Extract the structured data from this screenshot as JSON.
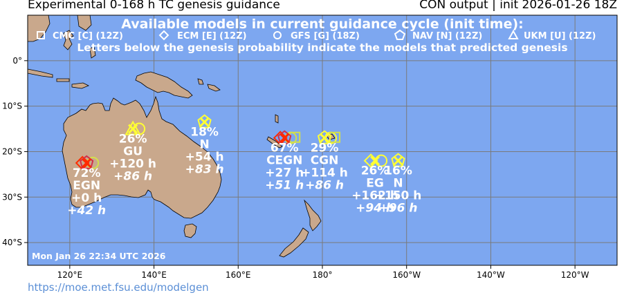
{
  "header": {
    "title_left": "Experimental 0-168 h TC genesis guidance",
    "title_right": "CON output | init 2026-01-26 18Z"
  },
  "footer": {
    "url": "https://moe.met.fsu.edu/modelgen"
  },
  "map": {
    "timestamp": "Mon Jan 26 22:34 UTC 2026",
    "legend_title": "Available models in current guidance cycle (init time):",
    "legend_note": "Letters below the genesis probability indicate the models that predicted genesis",
    "models": [
      {
        "symbol": "square",
        "label": "CMC [C] (12Z)"
      },
      {
        "symbol": "diamond",
        "label": "ECM [E] (12Z)"
      },
      {
        "symbol": "circle",
        "label": "GFS [G] (18Z)"
      },
      {
        "symbol": "pentagon",
        "label": "NAV [N] (12Z)"
      },
      {
        "symbol": "triangle",
        "label": "UKM [U] (12Z)"
      }
    ],
    "x_ticks": [
      "120°E",
      "140°E",
      "160°E",
      "180°",
      "160°W",
      "140°W",
      "120°W"
    ],
    "y_ticks": [
      "0°",
      "10°S",
      "20°S",
      "30°S",
      "40°S"
    ],
    "colors": {
      "ocean": "#7da7f0",
      "land": "#c9a88c",
      "grid": "#7a7a7a",
      "high": "#ff2a00",
      "mid": "#d4e04a",
      "low": "#ffff33"
    },
    "systems": [
      {
        "prob": "72%",
        "models": "EGN",
        "time1": "+0 h",
        "time2": "+42 h",
        "color": "#ff2a00",
        "lon": 124,
        "lat": -22.5
      },
      {
        "prob": "26%",
        "models": "GU",
        "time1": "+120 h",
        "time2": "+86 h",
        "color": "#ffff33",
        "lon": 135,
        "lat": -15
      },
      {
        "prob": "18%",
        "models": "N",
        "time1": "+54 h",
        "time2": "+83 h",
        "color": "#ffff33",
        "lon": 152,
        "lat": -13.5
      },
      {
        "prob": "67%",
        "models": "CEGN",
        "time1": "+27 h",
        "time2": "+51 h",
        "color": "#ff2a00",
        "lon": 171,
        "lat": -17
      },
      {
        "prob": "29%",
        "models": "CGN",
        "time1": "+114 h",
        "time2": "+86 h",
        "color": "#ffff33",
        "lon": 180.5,
        "lat": -17
      },
      {
        "prob": "26%",
        "models": "EG",
        "time1": "+162 h",
        "time2": "+94 h",
        "color": "#ffff33",
        "lon": 192.5,
        "lat": -22
      },
      {
        "prob": "16%",
        "models": "N",
        "time1": "+150 h",
        "time2": "+96 h",
        "color": "#ffff33",
        "lon": 198,
        "lat": -22
      }
    ]
  }
}
